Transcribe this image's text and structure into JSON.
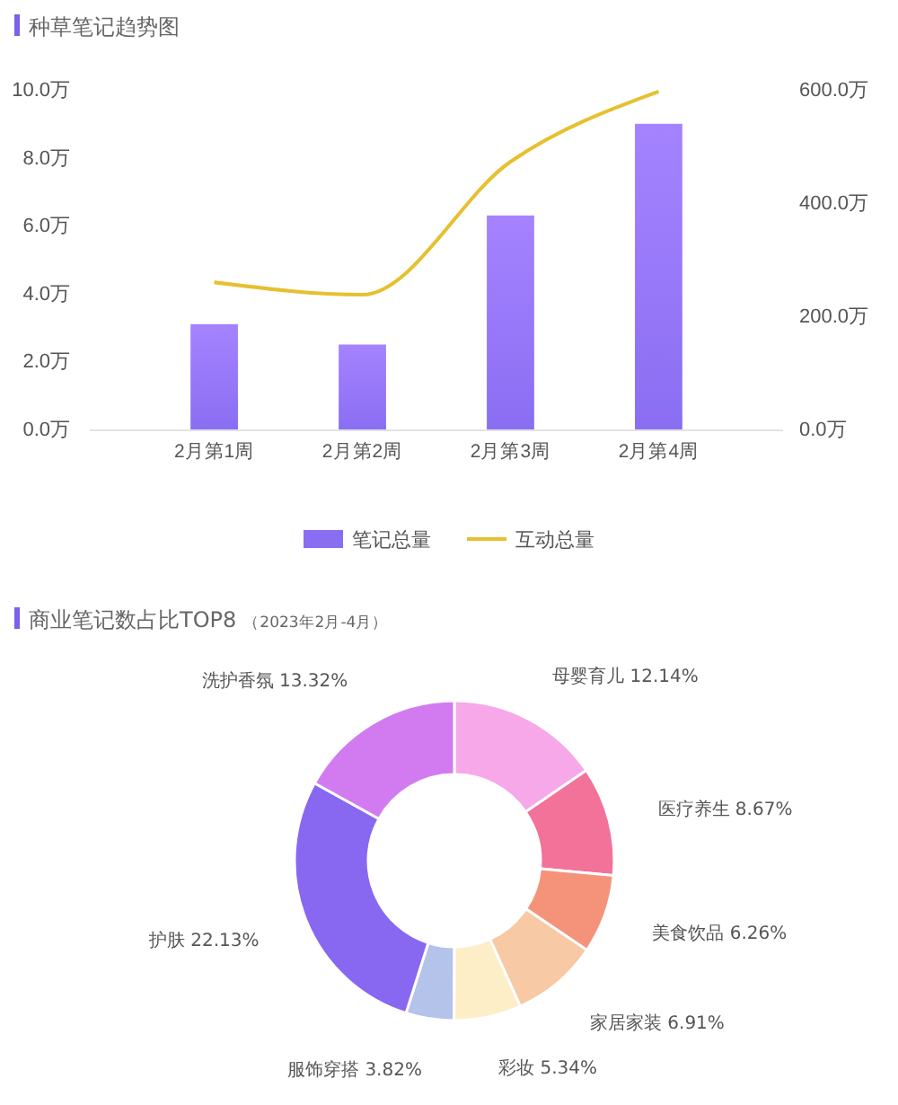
{
  "chart_data": [
    {
      "type": "bar",
      "title": "种草笔记趋势图",
      "categories": [
        "2月第1周",
        "2月第2周",
        "2月第3周",
        "2月第4周"
      ],
      "series": [
        {
          "name": "笔记总量",
          "color": "#8a6ef2",
          "values": [
            3.1,
            2.5,
            6.3,
            9.0
          ]
        },
        {
          "name": "互动总量",
          "type": "line",
          "axis": "y2",
          "color": "#e6c030",
          "values": [
            260,
            238,
            473,
            597
          ]
        }
      ],
      "ylim": [
        0,
        10
      ],
      "yticks": [
        {
          "value": 0,
          "label": "0.0万"
        },
        {
          "value": 2,
          "label": "2.0万"
        },
        {
          "value": 4,
          "label": "4.0万"
        },
        {
          "value": 6,
          "label": "6.0万"
        },
        {
          "value": 8,
          "label": "8.0万"
        },
        {
          "value": 10,
          "label": "10.0万"
        }
      ],
      "y2lim": [
        0,
        600
      ],
      "y2ticks": [
        {
          "value": 0,
          "label": "0.0万"
        },
        {
          "value": 200,
          "label": "200.0万"
        },
        {
          "value": 400,
          "label": "400.0万"
        },
        {
          "value": 600,
          "label": "600.0万"
        }
      ],
      "grid": false,
      "legend": "bottom",
      "marker": "none"
    },
    {
      "type": "donut",
      "title": "商业笔记数占比TOP8",
      "subtitle": "（2023年2月-4月）",
      "categories": [
        "母婴育儿",
        "医疗养生",
        "美食饮品",
        "家居家装",
        "彩妆",
        "服饰穿搭",
        "护肤",
        "洗护香氛"
      ],
      "values": [
        12.14,
        8.67,
        6.26,
        6.91,
        5.34,
        3.82,
        22.13,
        13.32
      ],
      "value_labels": [
        "12.14%",
        "8.67%",
        "6.26%",
        "6.91%",
        "5.34%",
        "3.82%",
        "22.13%",
        "13.32%"
      ],
      "colors": [
        "#f7a8e8",
        "#f27299",
        "#f5937a",
        "#f7c9a4",
        "#fdeec8",
        "#b3c3ea",
        "#8867f1",
        "#d27bf1"
      ]
    }
  ]
}
